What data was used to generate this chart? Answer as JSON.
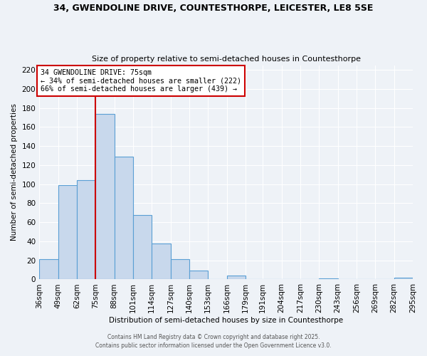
{
  "title1": "34, GWENDOLINE DRIVE, COUNTESTHORPE, LEICESTER, LE8 5SE",
  "title2": "Size of property relative to semi-detached houses in Countesthorpe",
  "xlabel": "Distribution of semi-detached houses by size in Countesthorpe",
  "ylabel": "Number of semi-detached properties",
  "bin_edges": [
    36,
    49,
    62,
    75,
    88,
    101,
    114,
    127,
    140,
    153,
    166,
    179,
    191,
    204,
    217,
    230,
    243,
    256,
    269,
    282,
    295
  ],
  "bin_labels": [
    "36sqm",
    "49sqm",
    "62sqm",
    "75sqm",
    "88sqm",
    "101sqm",
    "114sqm",
    "127sqm",
    "140sqm",
    "153sqm",
    "166sqm",
    "179sqm",
    "191sqm",
    "204sqm",
    "217sqm",
    "230sqm",
    "243sqm",
    "256sqm",
    "269sqm",
    "282sqm",
    "295sqm"
  ],
  "counts": [
    21,
    99,
    104,
    174,
    129,
    68,
    38,
    21,
    9,
    0,
    4,
    0,
    0,
    0,
    0,
    1,
    0,
    0,
    0,
    2
  ],
  "bar_face_color": "#c8d8ec",
  "bar_edge_color": "#5a9fd4",
  "vline_x": 75,
  "vline_color": "#cc0000",
  "annotation_title": "34 GWENDOLINE DRIVE: 75sqm",
  "annotation_line1": "← 34% of semi-detached houses are smaller (222)",
  "annotation_line2": "66% of semi-detached houses are larger (439) →",
  "annotation_box_edge_color": "#cc0000",
  "annotation_box_face_color": "#ffffff",
  "ylim": [
    0,
    225
  ],
  "yticks": [
    0,
    20,
    40,
    60,
    80,
    100,
    120,
    140,
    160,
    180,
    200,
    220
  ],
  "bg_color": "#eef2f7",
  "grid_color": "#ffffff",
  "footer1": "Contains HM Land Registry data © Crown copyright and database right 2025.",
  "footer2": "Contains public sector information licensed under the Open Government Licence v3.0."
}
